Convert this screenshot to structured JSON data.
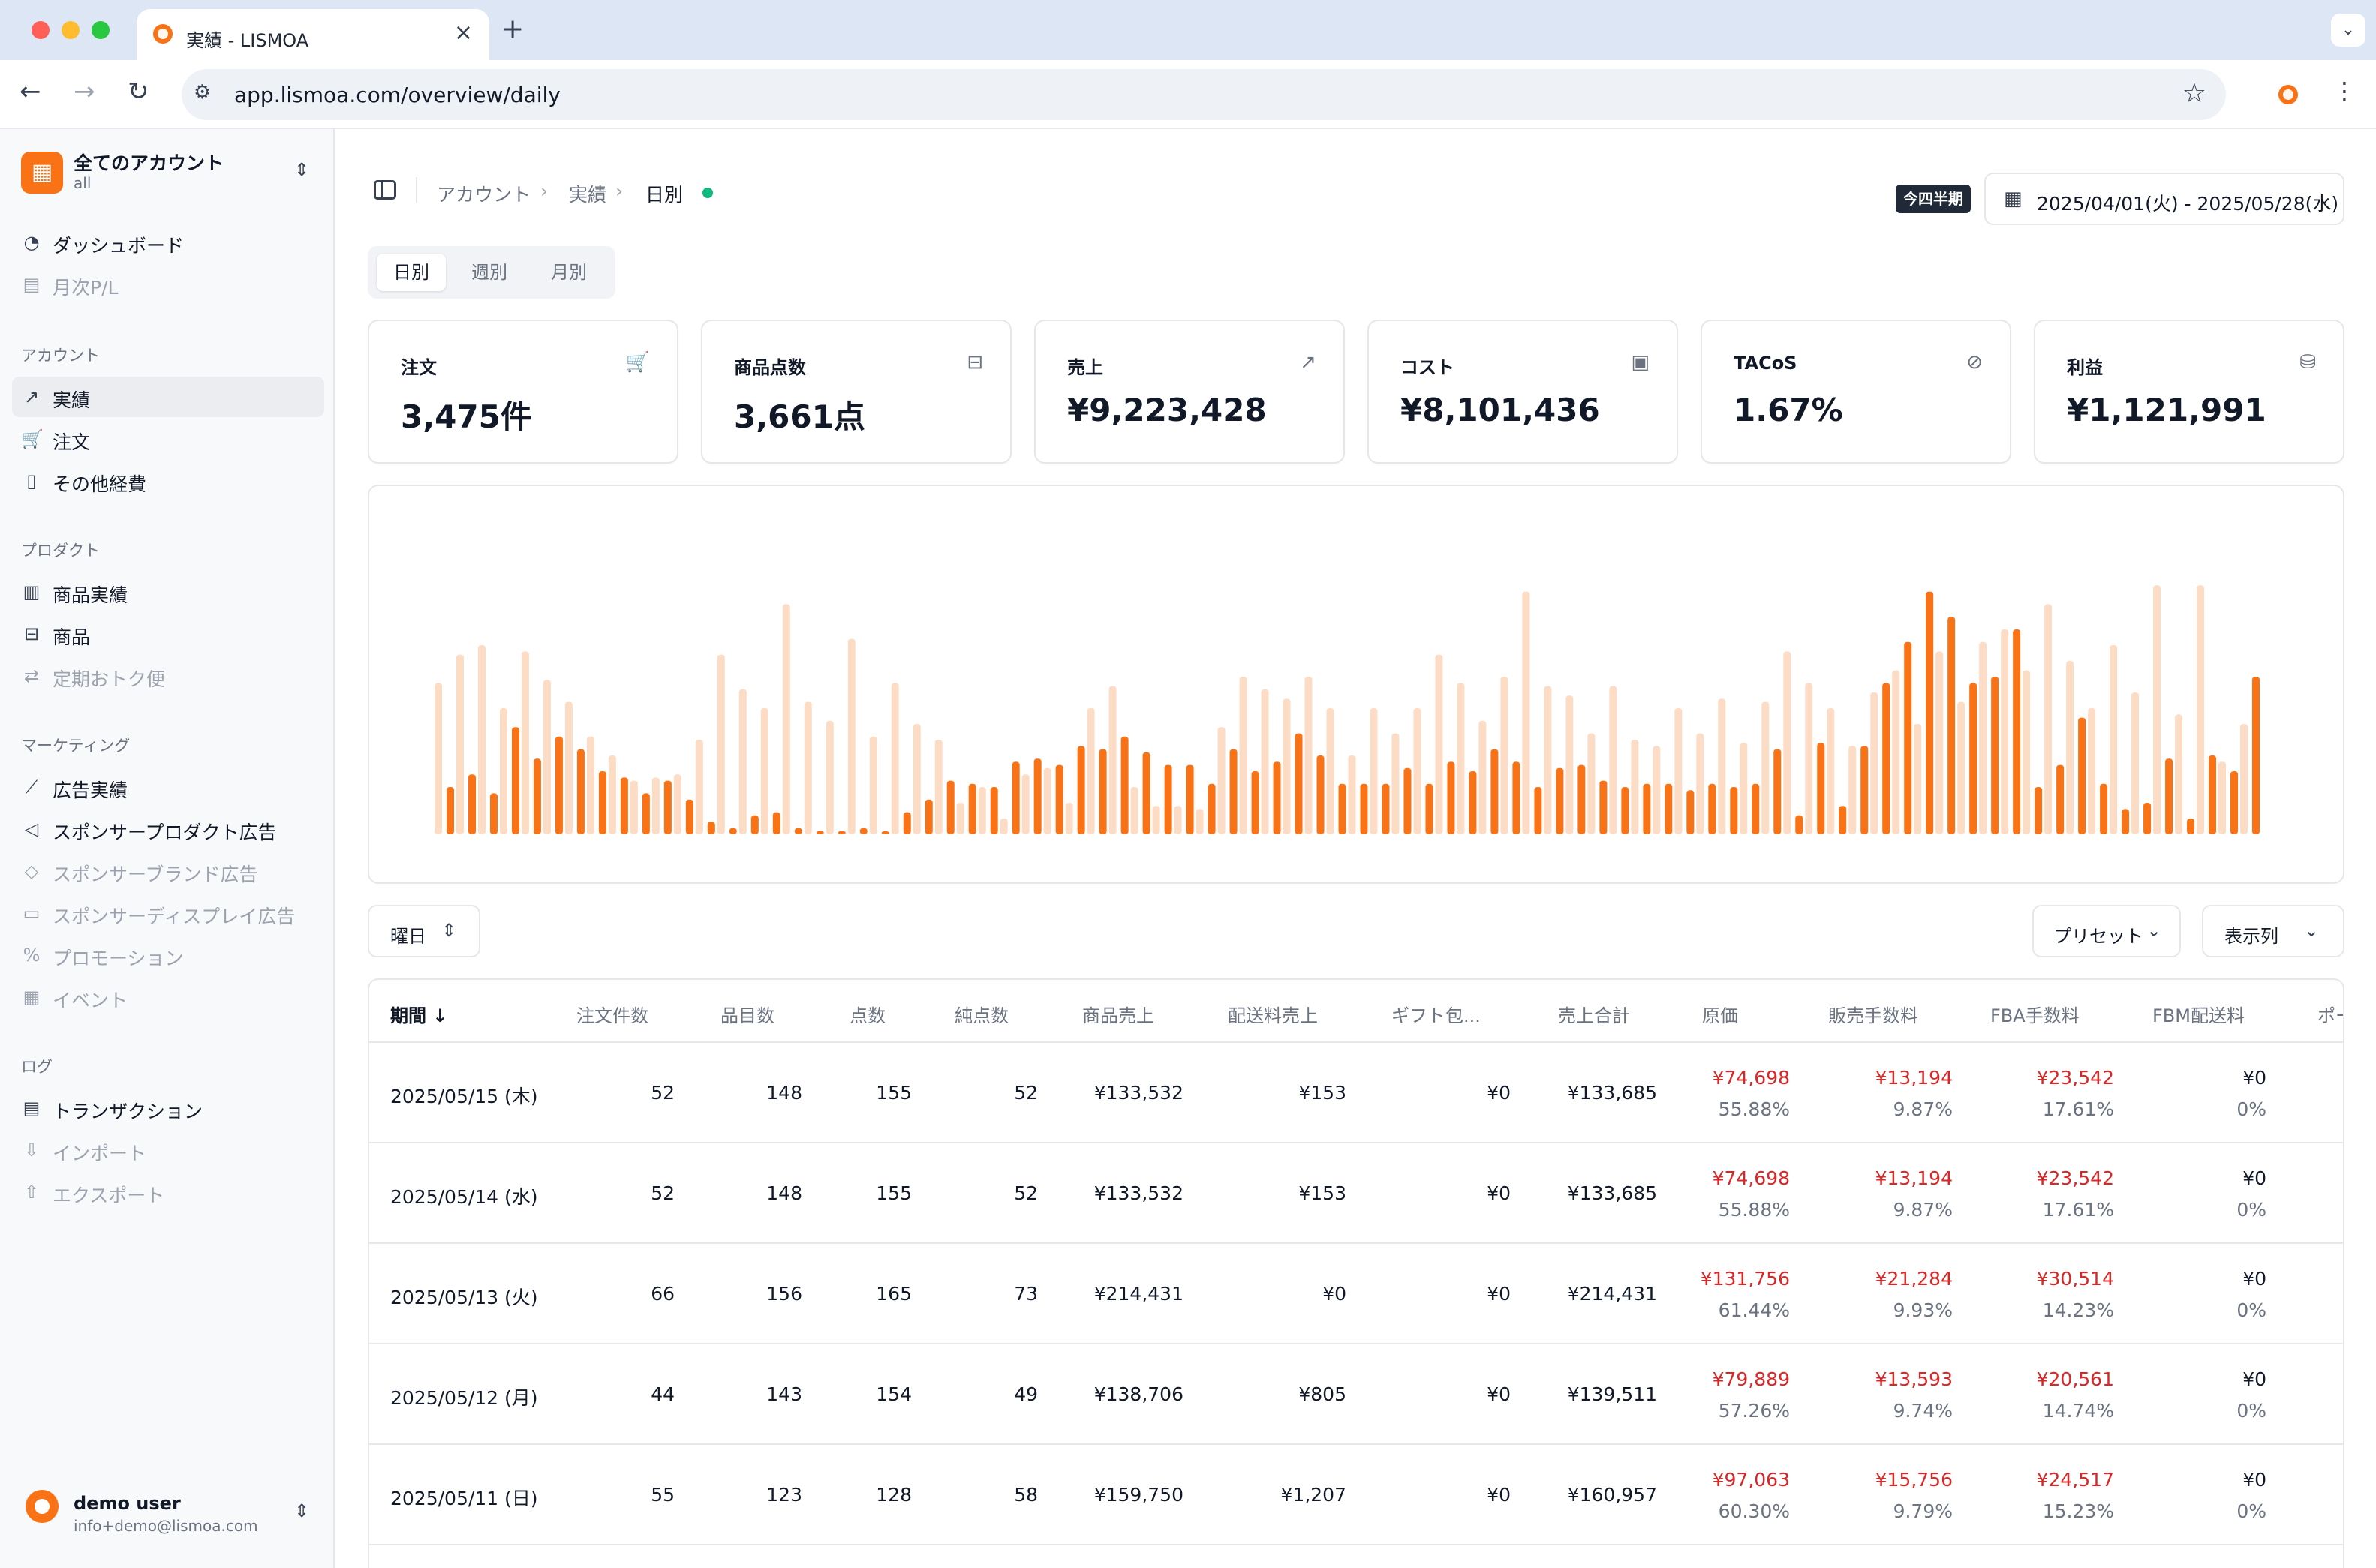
{
  "browser": {
    "tab_title": "実績 - LISMOA",
    "url": "app.lismoa.com/overview/daily"
  },
  "sidebar": {
    "account_name": "全てのアカウント",
    "account_sub": "all",
    "items": [
      {
        "label": "ダッシュボード",
        "icon": "gauge-icon"
      },
      {
        "label": "月次P/L",
        "icon": "table-icon"
      }
    ],
    "groups": [
      {
        "title": "アカウント",
        "items": [
          {
            "label": "実績",
            "icon": "chart-icon"
          },
          {
            "label": "注文",
            "icon": "cart-icon"
          },
          {
            "label": "その他経費",
            "icon": "document-icon"
          }
        ]
      },
      {
        "title": "プロダクト",
        "items": [
          {
            "label": "商品実績",
            "icon": "bar-chart-icon"
          },
          {
            "label": "商品",
            "icon": "bag-icon"
          },
          {
            "label": "定期おトク便",
            "icon": "repeat-icon"
          }
        ]
      },
      {
        "title": "マーケティング",
        "items": [
          {
            "label": "広告実績",
            "icon": "line-chart-icon"
          },
          {
            "label": "スポンサープロダクト広告",
            "icon": "megaphone-icon"
          },
          {
            "label": "スポンサーブランド広告",
            "icon": "tag-icon"
          },
          {
            "label": "スポンサーディスプレイ広告",
            "icon": "monitor-icon"
          },
          {
            "label": "プロモーション",
            "icon": "percent-icon"
          },
          {
            "label": "イベント",
            "icon": "calendar-icon"
          }
        ]
      },
      {
        "title": "ログ",
        "items": [
          {
            "label": "トランザクション",
            "icon": "clipboard-icon"
          },
          {
            "label": "インポート",
            "icon": "import-icon"
          },
          {
            "label": "エクスポート",
            "icon": "export-icon"
          }
        ]
      }
    ],
    "user": {
      "name": "demo user",
      "email": "info+demo@lismoa.com"
    }
  },
  "header": {
    "breadcrumb": [
      "アカウント",
      "実績",
      "日別"
    ],
    "period_badge": "今四半期",
    "date_range": "2025/04/01(火) - 2025/05/28(水)"
  },
  "view_tabs": [
    "日別",
    "週別",
    "月別"
  ],
  "kpis": [
    {
      "label": "注文",
      "value": "3,475件",
      "icon": "cart-icon"
    },
    {
      "label": "商品点数",
      "value": "3,661点",
      "icon": "bag-icon"
    },
    {
      "label": "売上",
      "value": "¥9,223,428",
      "icon": "chart-icon"
    },
    {
      "label": "コスト",
      "value": "¥8,101,436",
      "icon": "wallet-icon"
    },
    {
      "label": "TACoS",
      "value": "1.67%",
      "icon": "percent-circle-icon"
    },
    {
      "label": "利益",
      "value": "¥1,121,991",
      "icon": "coins-icon"
    }
  ],
  "colors": {
    "accent": "#f97316",
    "accent_light": "#fddcc6",
    "negative": "#dc2626",
    "live": "#10b981"
  },
  "chart_data": {
    "type": "bar",
    "series": [
      {
        "values": [
          48,
          57,
          60,
          40,
          58,
          49,
          42,
          31,
          25,
          17,
          18,
          19,
          30,
          57,
          46,
          40,
          73,
          42,
          36,
          62,
          31,
          48,
          35,
          30,
          10,
          15,
          5,
          19,
          21,
          10,
          40,
          47,
          15,
          9,
          9,
          8,
          34,
          50,
          46,
          43,
          50,
          40,
          25,
          40,
          32,
          40,
          57,
          48,
          36,
          50,
          77,
          47,
          44,
          32,
          47,
          30,
          28,
          40,
          32,
          43,
          29,
          42,
          58,
          48,
          40,
          28,
          45,
          52,
          35,
          58,
          42,
          61,
          65,
          52,
          73,
          55,
          40,
          60,
          45,
          79,
          38,
          79,
          23,
          35
        ]
      },
      {
        "values": [
          15,
          19,
          13,
          34,
          24,
          31,
          27,
          20,
          18,
          13,
          17,
          11,
          4,
          2,
          6,
          7,
          2,
          1,
          1,
          2,
          0,
          7,
          11,
          17,
          16,
          15,
          23,
          24,
          22,
          28,
          27,
          31,
          26,
          22,
          22,
          16,
          27,
          20,
          23,
          32,
          25,
          16,
          16,
          16,
          21,
          16,
          23,
          20,
          27,
          23,
          15,
          21,
          22,
          17,
          15,
          16,
          16,
          14,
          16,
          15,
          16,
          27,
          6,
          29,
          9,
          28,
          48,
          61,
          77,
          69,
          48,
          50,
          65,
          15,
          22,
          37,
          16,
          8,
          10,
          24,
          5,
          25,
          20,
          50
        ]
      }
    ]
  },
  "toolbar": {
    "group_by": "曜日",
    "preset": "プリセット",
    "columns": "表示列"
  },
  "table": {
    "columns": [
      "期間",
      "注文件数",
      "品目数",
      "点数",
      "純点数",
      "商品売上",
      "配送料売上",
      "ギフト包...",
      "売上合計",
      "原価",
      "販売手数料",
      "FBA手数料",
      "FBM配送料",
      "ポー"
    ],
    "rows": [
      {
        "date": "2025/05/15 (木)",
        "orders": "52",
        "items": "148",
        "units": "155",
        "net_units": "52",
        "product_sales": "¥133,532",
        "shipping": "¥153",
        "gift": "¥0",
        "total": "¥133,685",
        "cogs": "¥74,698",
        "cogs_pct": "55.88%",
        "fee": "¥13,194",
        "fee_pct": "9.87%",
        "fba": "¥23,542",
        "fba_pct": "17.61%",
        "fbm": "¥0",
        "fbm_pct": "0%"
      },
      {
        "date": "2025/05/14 (水)",
        "orders": "52",
        "items": "148",
        "units": "155",
        "net_units": "52",
        "product_sales": "¥133,532",
        "shipping": "¥153",
        "gift": "¥0",
        "total": "¥133,685",
        "cogs": "¥74,698",
        "cogs_pct": "55.88%",
        "fee": "¥13,194",
        "fee_pct": "9.87%",
        "fba": "¥23,542",
        "fba_pct": "17.61%",
        "fbm": "¥0",
        "fbm_pct": "0%"
      },
      {
        "date": "2025/05/13 (火)",
        "orders": "66",
        "items": "156",
        "units": "165",
        "net_units": "73",
        "product_sales": "¥214,431",
        "shipping": "¥0",
        "gift": "¥0",
        "total": "¥214,431",
        "cogs": "¥131,756",
        "cogs_pct": "61.44%",
        "fee": "¥21,284",
        "fee_pct": "9.93%",
        "fba": "¥30,514",
        "fba_pct": "14.23%",
        "fbm": "¥0",
        "fbm_pct": "0%"
      },
      {
        "date": "2025/05/12 (月)",
        "orders": "44",
        "items": "143",
        "units": "154",
        "net_units": "49",
        "product_sales": "¥138,706",
        "shipping": "¥805",
        "gift": "¥0",
        "total": "¥139,511",
        "cogs": "¥79,889",
        "cogs_pct": "57.26%",
        "fee": "¥13,593",
        "fee_pct": "9.74%",
        "fba": "¥20,561",
        "fba_pct": "14.74%",
        "fbm": "¥0",
        "fbm_pct": "0%"
      },
      {
        "date": "2025/05/11 (日)",
        "orders": "55",
        "items": "123",
        "units": "128",
        "net_units": "58",
        "product_sales": "¥159,750",
        "shipping": "¥1,207",
        "gift": "¥0",
        "total": "¥160,957",
        "cogs": "¥97,063",
        "cogs_pct": "60.30%",
        "fee": "¥15,756",
        "fee_pct": "9.79%",
        "fba": "¥24,517",
        "fba_pct": "15.23%",
        "fbm": "¥0",
        "fbm_pct": "0%"
      }
    ]
  }
}
